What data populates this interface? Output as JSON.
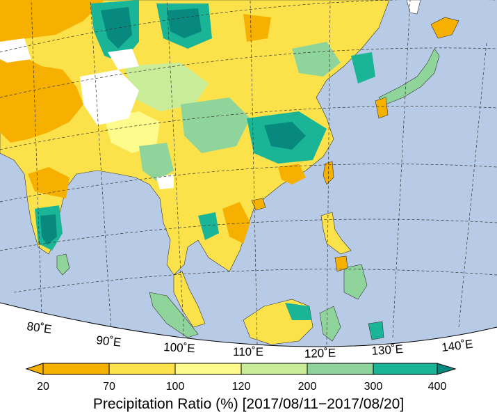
{
  "map": {
    "longitude_labels": [
      "80˚E",
      "90˚E",
      "100˚E",
      "110˚E",
      "120˚E",
      "130˚E",
      "140˚E"
    ]
  },
  "colorbar": {
    "title": "Precipitation Ratio (%) [2017/08/11−2017/08/20]",
    "ticks": [
      "20",
      "70",
      "100",
      "120",
      "200",
      "300",
      "400"
    ],
    "colors": [
      "#f6b000",
      "#fce24a",
      "#fdfb8c",
      "#c8ec98",
      "#8fd49a",
      "#1ab596",
      "#07897f"
    ],
    "unit": "%"
  },
  "palette": {
    "ocean": "#b7cae6",
    "missing": "#ffffff",
    "land_base": "#fce24a"
  }
}
